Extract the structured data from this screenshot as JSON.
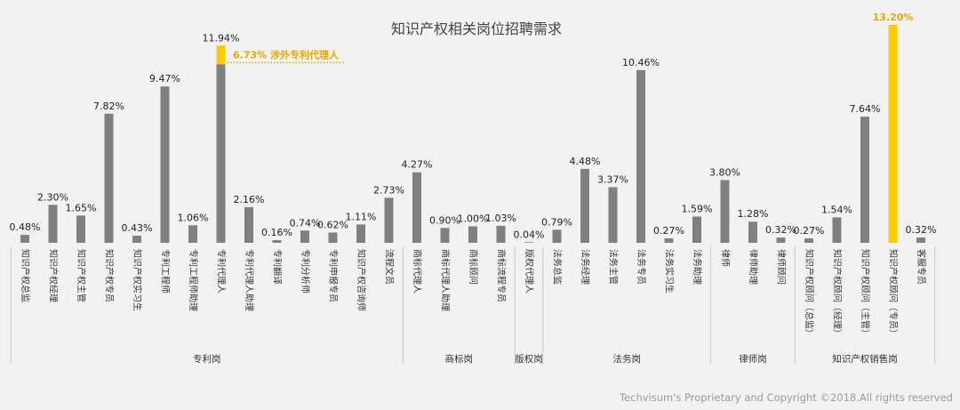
{
  "chart_data": {
    "type": "bar",
    "title": "知识产权相关岗位招聘需求",
    "categories": [
      "知识产权总监",
      "知识产权经理",
      "知识产权主管",
      "知识产权专员",
      "知识产权实习生",
      "专利工程师",
      "专利工程师助理",
      "专利代理人",
      "专利代理人助理",
      "专利翻译",
      "专利分析师",
      "专利申报专员",
      "知识产权咨询师",
      "流程文员",
      "商标代理人",
      "商标代理人助理",
      "商标顾问",
      "商标流程专员",
      "版权代理人",
      "法务总监",
      "法务经理",
      "法务主管",
      "法务专员",
      "法务实习生",
      "法务助理",
      "律师",
      "律师助理",
      "律师顾问",
      "知识产权顾问（总监）",
      "知识产权顾问（经理）",
      "知识产权顾问（主管）",
      "知识产权顾问（专员）",
      "客服专员"
    ],
    "values": [
      0.48,
      2.3,
      1.65,
      7.82,
      0.43,
      9.47,
      1.06,
      11.94,
      2.16,
      0.16,
      0.74,
      0.62,
      1.11,
      2.73,
      4.27,
      0.9,
      1.0,
      1.03,
      0.04,
      0.79,
      4.48,
      3.37,
      10.46,
      0.27,
      1.59,
      3.8,
      1.28,
      0.32,
      0.27,
      1.54,
      7.64,
      13.2,
      0.32
    ],
    "value_labels": [
      "0.48%",
      "2.30%",
      "1.65%",
      "7.82%",
      "0.43%",
      "9.47%",
      "1.06%",
      "11.94%",
      "2.16%",
      "0.16%",
      "0.74%",
      "0.62%",
      "1.11%",
      "2.73%",
      "4.27%",
      "0.90%",
      "1.00%",
      "1.03%",
      "0.04%",
      "0.79%",
      "4.48%",
      "3.37%",
      "10.46%",
      "0.27%",
      "1.59%",
      "3.80%",
      "1.28%",
      "0.32%",
      "0.27%",
      "1.54%",
      "7.64%",
      "13.20%",
      "0.32%"
    ],
    "groups": [
      {
        "label": "专利岗",
        "start": 0,
        "end": 13
      },
      {
        "label": "商标岗",
        "start": 14,
        "end": 17
      },
      {
        "label": "版权岗",
        "start": 18,
        "end": 18
      },
      {
        "label": "法务岗",
        "start": 19,
        "end": 24
      },
      {
        "label": "律师岗",
        "start": 25,
        "end": 27
      },
      {
        "label": "知识产权销售岗",
        "start": 28,
        "end": 32
      }
    ],
    "highlight_index": 31,
    "stacked_segment": {
      "index": 7,
      "value": 6.73,
      "label": "6.73% 涉外专利代理人"
    },
    "ylim": [
      0,
      13.2
    ],
    "grid": false,
    "colors": {
      "bar": "#808080",
      "highlight": "#ffcc00",
      "callout": "#e8a800"
    }
  },
  "footer": {
    "copyright": "Techvisum's Proprietary and Copyright ©2018.All rights reserved"
  }
}
